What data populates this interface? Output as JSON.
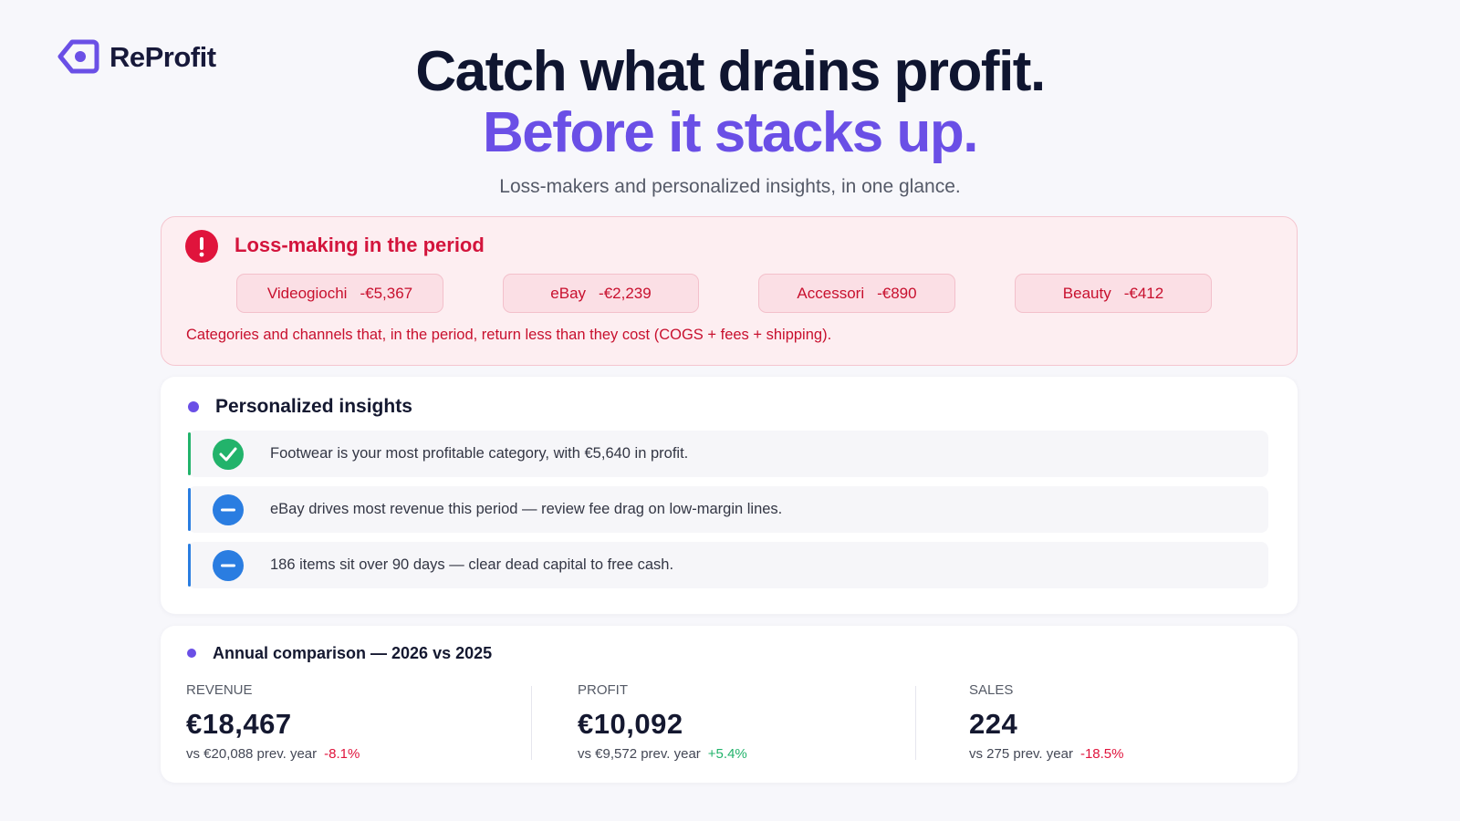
{
  "brand": {
    "name": "ReProfit"
  },
  "hero": {
    "title": "Catch what drains profit.",
    "highlight": "Before it stacks up.",
    "subtitle": "Loss-makers and personalized insights, in one glance."
  },
  "loss_panel": {
    "title": "Loss-making in the period",
    "items": [
      {
        "name": "Videogiochi",
        "amount": "-€5,367"
      },
      {
        "name": "eBay",
        "amount": "-€2,239"
      },
      {
        "name": "Accessori",
        "amount": "-€890"
      },
      {
        "name": "Beauty",
        "amount": "-€412"
      }
    ],
    "note": "Categories and channels that, in the period, return less than they cost (COGS + fees + shipping)."
  },
  "insights": {
    "title": "Personalized insights",
    "items": [
      "Footwear is your most profitable category, with €5,640 in profit.",
      "eBay drives most revenue this period — review fee drag on low-margin lines.",
      "186 items sit over 90 days — clear dead capital to free cash."
    ]
  },
  "comparison": {
    "title": "Annual comparison — 2026 vs 2025",
    "metrics": [
      {
        "label": "REVENUE",
        "value": "€18,467",
        "previous": "vs €20,088 prev. year",
        "change": "-8.1%"
      },
      {
        "label": "PROFIT",
        "value": "€10,092",
        "previous": "vs €9,572 prev. year",
        "change": "+5.4%"
      },
      {
        "label": "SALES",
        "value": "224",
        "previous": "vs 275 prev. year",
        "change": "-18.5%"
      }
    ]
  }
}
